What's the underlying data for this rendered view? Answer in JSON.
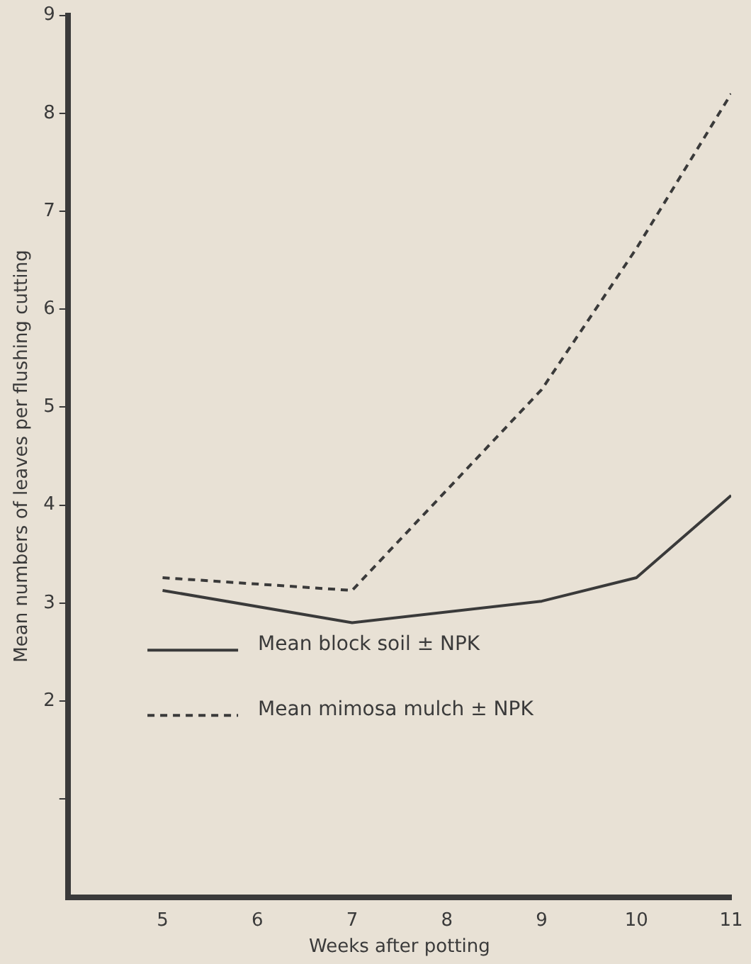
{
  "chart_data": {
    "type": "line",
    "xlabel": "Weeks after potting",
    "ylabel": "Mean numbers of leaves per flushing cutting",
    "x": [
      5,
      7,
      9,
      10,
      11
    ],
    "series": [
      {
        "name": "Mean block soil ± NPK",
        "color": "#3a3a3a",
        "values": [
          3.13,
          2.8,
          3.02,
          3.26,
          4.1
        ],
        "line_style": "solid"
      },
      {
        "name": "Mean mimosa mulch ± NPK",
        "color": "#3a3a3a",
        "values": [
          3.26,
          3.13,
          5.18,
          6.62,
          8.2
        ],
        "line_style": "dashed"
      }
    ],
    "xlim": [
      4,
      11
    ],
    "xticks": [
      5,
      6,
      7,
      8,
      9,
      10,
      11
    ],
    "ylim": [
      0,
      9
    ],
    "yticks": [
      {
        "value": 1,
        "label": null
      },
      2,
      3,
      4,
      5,
      6,
      7,
      8,
      9
    ],
    "grid": false,
    "legend": "bottom left",
    "marker": "none"
  }
}
